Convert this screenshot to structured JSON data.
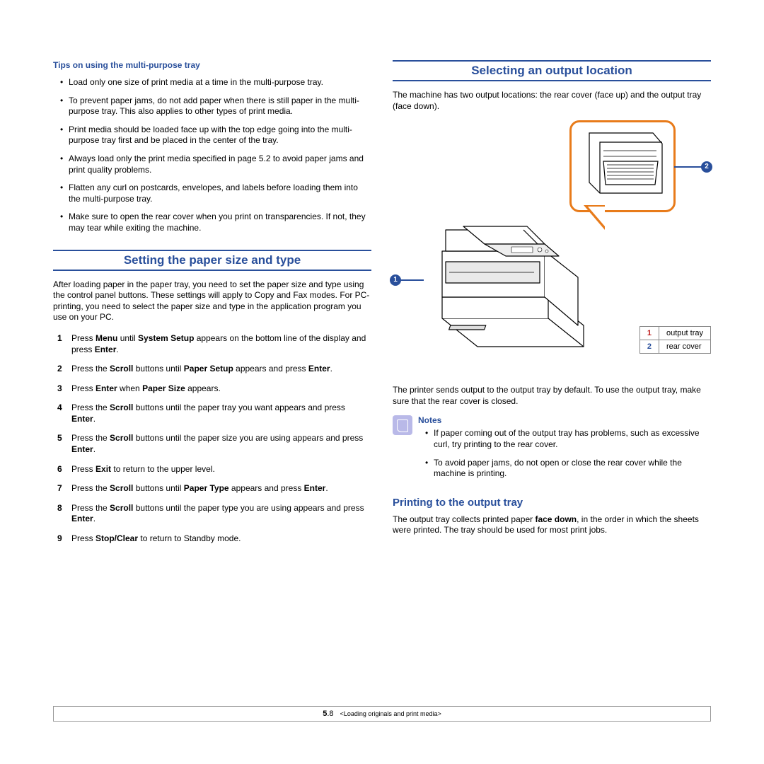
{
  "colors": {
    "accent": "#294f9b",
    "callout_border": "#e87b1a",
    "marker_bg": "#294f9b",
    "note_icon_bg": "#b9b9e8",
    "legend_red": "#c02020",
    "legend_blue": "#294f9b",
    "rule": "#294f9b"
  },
  "left": {
    "tips_heading": "Tips on using the multi-purpose tray",
    "tips": [
      "Load only one size of print media at a time in the multi-purpose tray.",
      "To prevent paper jams, do not add paper when there is still paper in the multi-purpose tray. This also applies to other types of print media.",
      "Print media should be loaded face up with the top edge going into the multi-purpose tray first and be placed in the center of the tray.",
      "Always load only the print media specified in page 5.2 to avoid paper jams and print quality problems.",
      "Flatten any curl on postcards, envelopes, and labels before loading them into the multi-purpose tray.",
      "Make sure to open the rear cover when you print on transparencies. If not, they may tear while exiting the machine."
    ],
    "section_heading": "Setting the paper size and type",
    "intro": "After loading paper in the paper tray, you need to set the paper size and type using the control panel buttons. These settings will apply to Copy and Fax modes. For PC-printing, you need to select the paper size and type in the application program you use on your PC.",
    "steps": [
      "Press <b>Menu</b> until <b>System Setup</b> appears on the bottom line of the display and press <b>Enter</b>.",
      "Press the <b>Scroll</b> buttons until <b>Paper Setup</b> appears and press <b>Enter</b>.",
      "Press <b>Enter</b> when <b>Paper Size</b> appears.",
      "Press the <b>Scroll</b> buttons until the paper tray you want appears and press <b>Enter</b>.",
      "Press the <b>Scroll</b> buttons until the paper size you are using appears and press <b>Enter</b>.",
      "Press <b>Exit</b> to return to the upper level.",
      "Press the <b>Scroll</b> buttons until <b>Paper Type</b> appears and press <b>Enter</b>.",
      "Press the <b>Scroll</b> buttons until the paper type you are using appears and press <b>Enter</b>.",
      "Press <b>Stop/Clear</b> to return to Standby mode."
    ]
  },
  "right": {
    "section_heading": "Selecting an output location",
    "intro": "The machine has two output locations: the rear cover (face up) and the output tray (face down).",
    "legend": [
      {
        "n": "1",
        "label": "output tray"
      },
      {
        "n": "2",
        "label": "rear cover"
      }
    ],
    "after_figure": "The printer sends output to the output tray by default. To use the output tray, make sure that the rear cover is closed.",
    "notes_title": "Notes",
    "notes": [
      "If paper coming out of the output tray has problems, such as excessive curl, try printing to the rear cover.",
      "To avoid paper jams, do not open or close the rear cover while the machine is printing."
    ],
    "sub_heading": "Printing to the output tray",
    "sub_text": "The output tray collects printed paper <b>face down</b>, in the order in which the sheets were printed. The tray should be used for most print jobs."
  },
  "footer": {
    "chapter_bold": "5",
    "page": ".8",
    "chapter_name": "<Loading originals and print media>"
  }
}
